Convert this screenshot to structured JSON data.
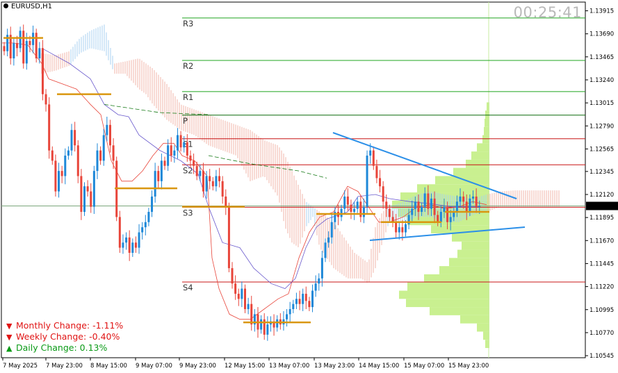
{
  "symbol": "EURUSD,H1",
  "timer": "00:25:41",
  "stats": {
    "monthly": {
      "label": "Monthly Change: -1.11%",
      "direction": "down"
    },
    "weekly": {
      "label": "Weekly Change: -0.40%",
      "direction": "down"
    },
    "daily": {
      "label": "Daily Change: 0.13%",
      "direction": "up"
    }
  },
  "colors": {
    "bull": "#1e88d8",
    "bear": "#e8453a",
    "pivot_up": "#1fa51f",
    "pivot_dn": "#c81414",
    "pivot_p": "#0c6a0c",
    "trend": "#2b8fe8",
    "volume_profile": "#c9f090",
    "kumo_bear": "#f0b4a8",
    "kumo_bull": "#a8d0f0",
    "orange": "#d9960f",
    "current_price_line": "#7aa67a"
  },
  "chart_data": {
    "type": "candlestick",
    "symbol": "EURUSD",
    "timeframe": "H1",
    "current_price": 1.12008,
    "y_axis": {
      "ticks": [
        "1.13915",
        "1.13690",
        "1.13465",
        "1.13240",
        "1.13015",
        "1.12790",
        "1.12565",
        "1.12345",
        "1.12120",
        "1.11895",
        "1.11670",
        "1.11445",
        "1.11220",
        "1.10995",
        "1.10770",
        "1.10545"
      ],
      "range": [
        1.10525,
        1.14
      ]
    },
    "x_axis": {
      "ticks": [
        "7 May 2025",
        "7 May 23:00",
        "8 May 15:00",
        "9 May 07:00",
        "9 May 23:00",
        "12 May 15:00",
        "13 May 07:00",
        "13 May 23:00",
        "14 May 15:00",
        "15 May 07:00",
        "15 May 23:00"
      ]
    },
    "pivots": [
      {
        "name": "R3",
        "value": 1.13845
      },
      {
        "name": "R2",
        "value": 1.1343
      },
      {
        "name": "R1",
        "value": 1.13125
      },
      {
        "name": "P",
        "value": 1.12895
      },
      {
        "name": "S1",
        "value": 1.12665
      },
      {
        "name": "S2",
        "value": 1.1241
      },
      {
        "name": "S3",
        "value": 1.11995
      },
      {
        "name": "S4",
        "value": 1.11265
      }
    ],
    "candles_close": [
      1.1352,
      1.1368,
      1.1345,
      1.136,
      1.1355,
      1.1372,
      1.134,
      1.1362,
      1.1358,
      1.137,
      1.1345,
      1.1355,
      1.131,
      1.13,
      1.1255,
      1.1245,
      1.1215,
      1.1235,
      1.123,
      1.125,
      1.1255,
      1.1275,
      1.126,
      1.123,
      1.1195,
      1.122,
      1.1215,
      1.12,
      1.1235,
      1.1255,
      1.1245,
      1.127,
      1.128,
      1.126,
      1.1245,
      1.119,
      1.116,
      1.1165,
      1.117,
      1.1155,
      1.1165,
      1.116,
      1.1175,
      1.118,
      1.1185,
      1.1195,
      1.121,
      1.1235,
      1.1225,
      1.1245,
      1.124,
      1.126,
      1.125,
      1.1255,
      1.127,
      1.1258,
      1.1263,
      1.125,
      1.1245,
      1.124,
      1.123,
      1.1235,
      1.1215,
      1.123,
      1.1225,
      1.122,
      1.123,
      1.1225,
      1.121,
      1.12,
      1.114,
      1.1125,
      1.1115,
      1.111,
      1.112,
      1.11,
      1.1105,
      1.1085,
      1.1095,
      1.108,
      1.109,
      1.1075,
      1.1085,
      1.1088,
      1.1082,
      1.109,
      1.1085,
      1.109,
      1.1095,
      1.11,
      1.1105,
      1.111,
      1.1105,
      1.1115,
      1.1108,
      1.1102,
      1.1118,
      1.1125,
      1.113,
      1.115,
      1.1165,
      1.117,
      1.1185,
      1.1195,
      1.119,
      1.1198,
      1.121,
      1.1202,
      1.1195,
      1.1198,
      1.1205,
      1.119,
      1.12,
      1.125,
      1.1255,
      1.124,
      1.1228,
      1.122,
      1.1205,
      1.1198,
      1.119,
      1.1185,
      1.1175,
      1.118,
      1.1175,
      1.1183,
      1.1192,
      1.1198,
      1.1205,
      1.1195,
      1.12,
      1.1213,
      1.1198,
      1.1208,
      1.1192,
      1.1185,
      1.1195,
      1.12,
      1.1185,
      1.119,
      1.1195,
      1.1205,
      1.121,
      1.1205,
      1.1195,
      1.1208,
      1.121,
      1.12,
      1.1201
    ]
  }
}
